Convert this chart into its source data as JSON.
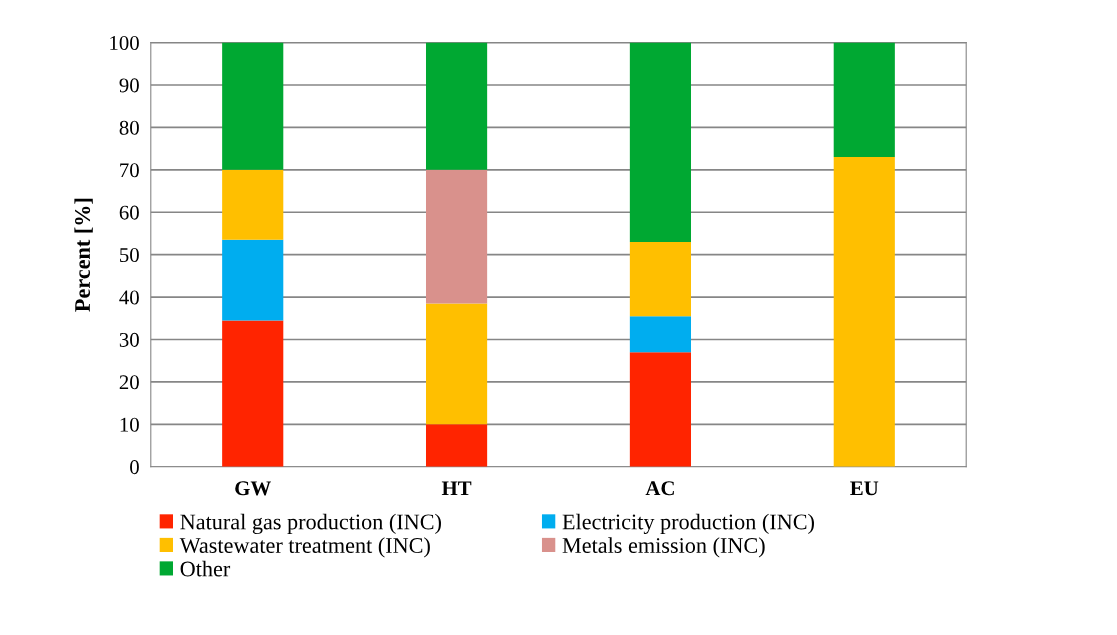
{
  "chart_data": {
    "type": "bar",
    "stacked": true,
    "ylabel": "Percent [%]",
    "categories": [
      "GW",
      "HT",
      "AC",
      "EU"
    ],
    "series": [
      {
        "name": "Natural gas production (INC)",
        "color": "#ff2400",
        "values": [
          34.5,
          10,
          27,
          0
        ]
      },
      {
        "name": "Electricity production (INC)",
        "color": "#00adef",
        "values": [
          19,
          0,
          8.5,
          0
        ]
      },
      {
        "name": "Wastewater treatment (INC)",
        "color": "#ffbf00",
        "values": [
          16.5,
          28.5,
          17.5,
          73
        ]
      },
      {
        "name": "Metals emission (INC)",
        "color": "#d9918c",
        "values": [
          0,
          31.5,
          0,
          0
        ]
      },
      {
        "name": "Other",
        "color": "#00a832",
        "values": [
          30,
          30,
          47,
          27
        ]
      }
    ],
    "ylim": [
      0,
      100
    ],
    "yticks": [
      0,
      10,
      20,
      30,
      40,
      50,
      60,
      70,
      80,
      90,
      100
    ],
    "grid": "y",
    "legend": "bottom"
  }
}
